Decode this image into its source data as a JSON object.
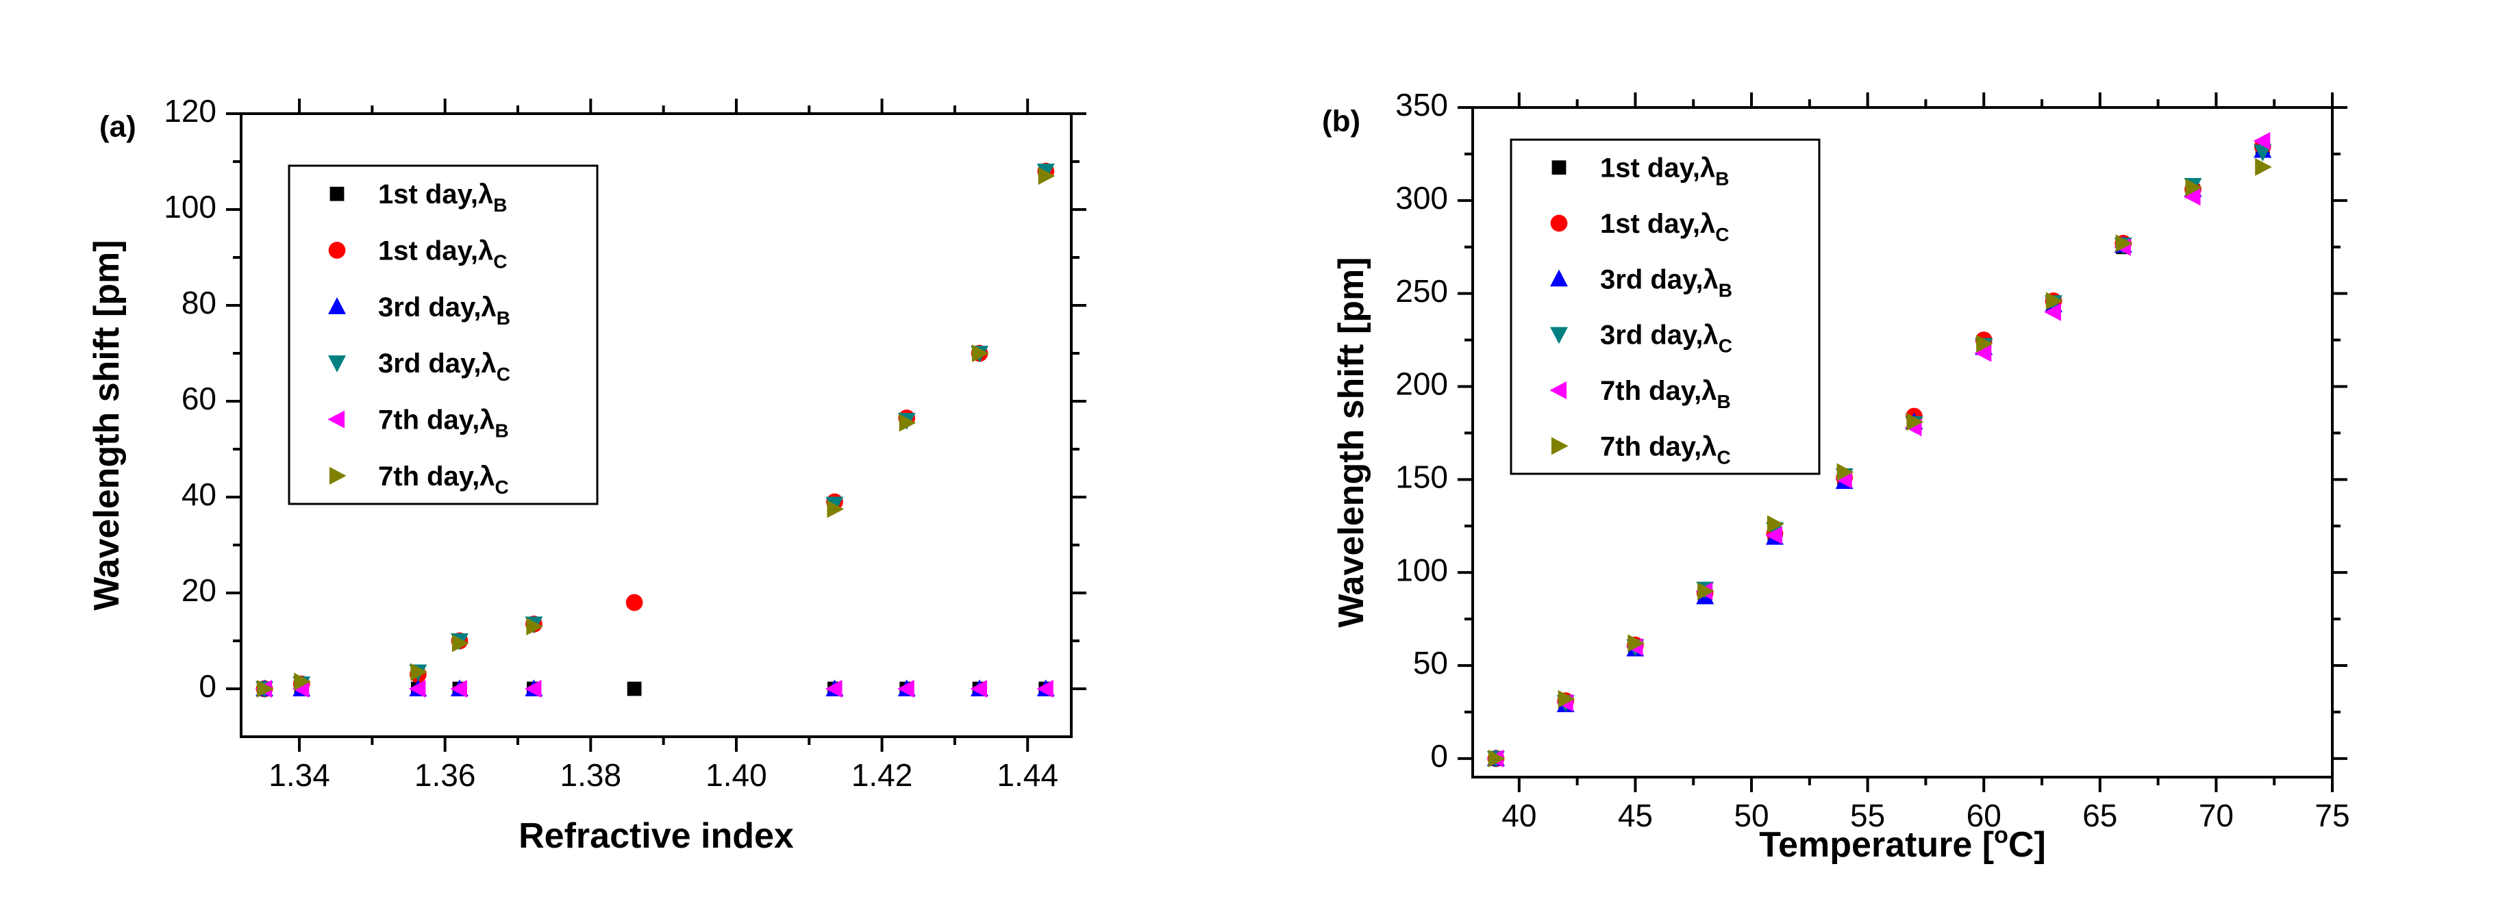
{
  "chart_data": [
    {
      "type": "scatter",
      "panel_label": "(a)",
      "xlabel": "Refractive index",
      "ylabel": "Wavelength shift [pm]",
      "xlim": [
        1.332,
        1.446
      ],
      "ylim": [
        -10,
        120
      ],
      "x_ticks": [
        1.34,
        1.36,
        1.38,
        1.4,
        1.42,
        1.44
      ],
      "x_tick_labels": [
        "1.34",
        "1.36",
        "1.38",
        "1.40",
        "1.42",
        "1.44"
      ],
      "y_ticks": [
        0,
        20,
        40,
        60,
        80,
        100,
        120
      ],
      "y_tick_labels": [
        "0",
        "20",
        "40",
        "60",
        "80",
        "100",
        "120"
      ],
      "legend_position": "upper-left",
      "series": [
        {
          "name": "1st day,λB",
          "legend_main": "1st day,λ",
          "legend_sub": "B",
          "marker": "square",
          "color": "#000000",
          "points": [
            [
              1.3352,
              0
            ],
            [
              1.3403,
              0
            ],
            [
              1.3563,
              0
            ],
            [
              1.362,
              0
            ],
            [
              1.3722,
              0
            ],
            [
              1.386,
              0
            ],
            [
              1.4135,
              0
            ],
            [
              1.4234,
              0
            ],
            [
              1.4334,
              0
            ],
            [
              1.4425,
              0
            ]
          ]
        },
        {
          "name": "1st day,λC",
          "legend_main": "1st day,λ",
          "legend_sub": "C",
          "marker": "circle",
          "color": "#ff0000",
          "points": [
            [
              1.3352,
              0
            ],
            [
              1.3403,
              1
            ],
            [
              1.3563,
              3
            ],
            [
              1.362,
              10
            ],
            [
              1.3722,
              13.5
            ],
            [
              1.386,
              18
            ],
            [
              1.4135,
              39
            ],
            [
              1.4234,
              56.5
            ],
            [
              1.4334,
              70
            ],
            [
              1.4425,
              108
            ]
          ]
        },
        {
          "name": "3rd day,λB",
          "legend_main": "3rd day,λ",
          "legend_sub": "B",
          "marker": "triangle-up",
          "color": "#0000ff",
          "points": [
            [
              1.3352,
              0
            ],
            [
              1.3403,
              0
            ],
            [
              1.3563,
              0
            ],
            [
              1.362,
              0
            ],
            [
              1.3722,
              0
            ],
            [
              1.4135,
              0
            ],
            [
              1.4234,
              0
            ],
            [
              1.4334,
              0
            ],
            [
              1.4425,
              0
            ]
          ]
        },
        {
          "name": "3rd day,λC",
          "legend_main": "3rd day,λ",
          "legend_sub": "C",
          "marker": "triangle-down",
          "color": "#008080",
          "points": [
            [
              1.3352,
              0
            ],
            [
              1.3403,
              1
            ],
            [
              1.3563,
              3.5
            ],
            [
              1.362,
              10
            ],
            [
              1.3722,
              13.5
            ],
            [
              1.4135,
              38.5
            ],
            [
              1.4234,
              56
            ],
            [
              1.4334,
              70
            ],
            [
              1.4425,
              108
            ]
          ]
        },
        {
          "name": "7th day,λB",
          "legend_main": "7th day,λ",
          "legend_sub": "B",
          "marker": "triangle-left",
          "color": "#ff00ff",
          "points": [
            [
              1.3352,
              0
            ],
            [
              1.3403,
              0
            ],
            [
              1.3563,
              0
            ],
            [
              1.362,
              0
            ],
            [
              1.3722,
              0
            ],
            [
              1.4135,
              0
            ],
            [
              1.4234,
              0
            ],
            [
              1.4334,
              0
            ],
            [
              1.4425,
              0
            ]
          ]
        },
        {
          "name": "7th day,λC",
          "legend_main": "7th day,λ",
          "legend_sub": "C",
          "marker": "triangle-right",
          "color": "#808000",
          "points": [
            [
              1.3352,
              0
            ],
            [
              1.3403,
              1.5
            ],
            [
              1.3563,
              3.5
            ],
            [
              1.362,
              9.5
            ],
            [
              1.3722,
              13
            ],
            [
              1.4135,
              37.5
            ],
            [
              1.4234,
              55.5
            ],
            [
              1.4334,
              70
            ],
            [
              1.4425,
              107
            ]
          ]
        }
      ]
    },
    {
      "type": "scatter",
      "panel_label": "(b)",
      "xlabel": "Temperature [°C]",
      "xlabel_parts": [
        "Temperature [",
        "o",
        "C]"
      ],
      "ylabel": "Wavelength shift [pm]",
      "xlim": [
        38,
        75
      ],
      "ylim": [
        -10,
        350
      ],
      "x_ticks": [
        40,
        45,
        50,
        55,
        60,
        65,
        70,
        75
      ],
      "x_tick_labels": [
        "40",
        "45",
        "50",
        "55",
        "60",
        "65",
        "70",
        "75"
      ],
      "y_ticks": [
        0,
        50,
        100,
        150,
        200,
        250,
        300,
        350
      ],
      "y_tick_labels": [
        "0",
        "50",
        "100",
        "150",
        "200",
        "250",
        "300",
        "350"
      ],
      "legend_position": "upper-left",
      "series": [
        {
          "name": "1st day,λB",
          "legend_main": "1st day,λ",
          "legend_sub": "B",
          "marker": "square",
          "color": "#000000",
          "points": [
            [
              39,
              0
            ],
            [
              42,
              30
            ],
            [
              45,
              60
            ],
            [
              48,
              88
            ],
            [
              51,
              120
            ],
            [
              54,
              150
            ],
            [
              57,
              182
            ],
            [
              60,
              222
            ],
            [
              63,
              245
            ],
            [
              66,
              275
            ],
            [
              69,
              305
            ],
            [
              72,
              328
            ]
          ]
        },
        {
          "name": "1st day,λC",
          "legend_main": "1st day,λ",
          "legend_sub": "C",
          "marker": "circle",
          "color": "#ff0000",
          "points": [
            [
              39,
              0
            ],
            [
              42,
              31
            ],
            [
              45,
              61
            ],
            [
              48,
              89
            ],
            [
              51,
              121
            ],
            [
              54,
              151
            ],
            [
              57,
              184
            ],
            [
              60,
              225
            ],
            [
              63,
              246
            ],
            [
              66,
              277
            ],
            [
              69,
              306
            ],
            [
              72,
              329
            ]
          ]
        },
        {
          "name": "3rd day,λB",
          "legend_main": "3rd day,λ",
          "legend_sub": "B",
          "marker": "triangle-up",
          "color": "#0000ff",
          "points": [
            [
              39,
              0
            ],
            [
              42,
              29
            ],
            [
              45,
              59
            ],
            [
              48,
              87
            ],
            [
              51,
              119
            ],
            [
              54,
              149
            ],
            [
              57,
              181
            ],
            [
              60,
              221
            ],
            [
              63,
              244
            ],
            [
              66,
              276
            ],
            [
              69,
              306
            ],
            [
              72,
              327
            ]
          ]
        },
        {
          "name": "3rd day,λC",
          "legend_main": "3rd day,λ",
          "legend_sub": "C",
          "marker": "triangle-down",
          "color": "#008080",
          "points": [
            [
              39,
              0
            ],
            [
              42,
              30
            ],
            [
              45,
              60
            ],
            [
              48,
              91
            ],
            [
              51,
              123
            ],
            [
              54,
              152
            ],
            [
              57,
              180
            ],
            [
              60,
              222
            ],
            [
              63,
              245
            ],
            [
              66,
              276
            ],
            [
              69,
              308
            ],
            [
              72,
              326
            ]
          ]
        },
        {
          "name": "7th day,λB",
          "legend_main": "7th day,λ",
          "legend_sub": "B",
          "marker": "triangle-left",
          "color": "#ff00ff",
          "points": [
            [
              39,
              0
            ],
            [
              42,
              30
            ],
            [
              45,
              60
            ],
            [
              48,
              90
            ],
            [
              51,
              120
            ],
            [
              54,
              150
            ],
            [
              57,
              178
            ],
            [
              60,
              218
            ],
            [
              63,
              240
            ],
            [
              66,
              275
            ],
            [
              69,
              302
            ],
            [
              72,
              332
            ]
          ]
        },
        {
          "name": "7th day,λC",
          "legend_main": "7th day,λ",
          "legend_sub": "C",
          "marker": "triangle-right",
          "color": "#808000",
          "points": [
            [
              39,
              0
            ],
            [
              42,
              32
            ],
            [
              45,
              62
            ],
            [
              48,
              90
            ],
            [
              51,
              126
            ],
            [
              54,
              154
            ],
            [
              57,
              181
            ],
            [
              60,
              223
            ],
            [
              63,
              246
            ],
            [
              66,
              277
            ],
            [
              69,
              307
            ],
            [
              72,
              318
            ]
          ]
        }
      ]
    }
  ]
}
